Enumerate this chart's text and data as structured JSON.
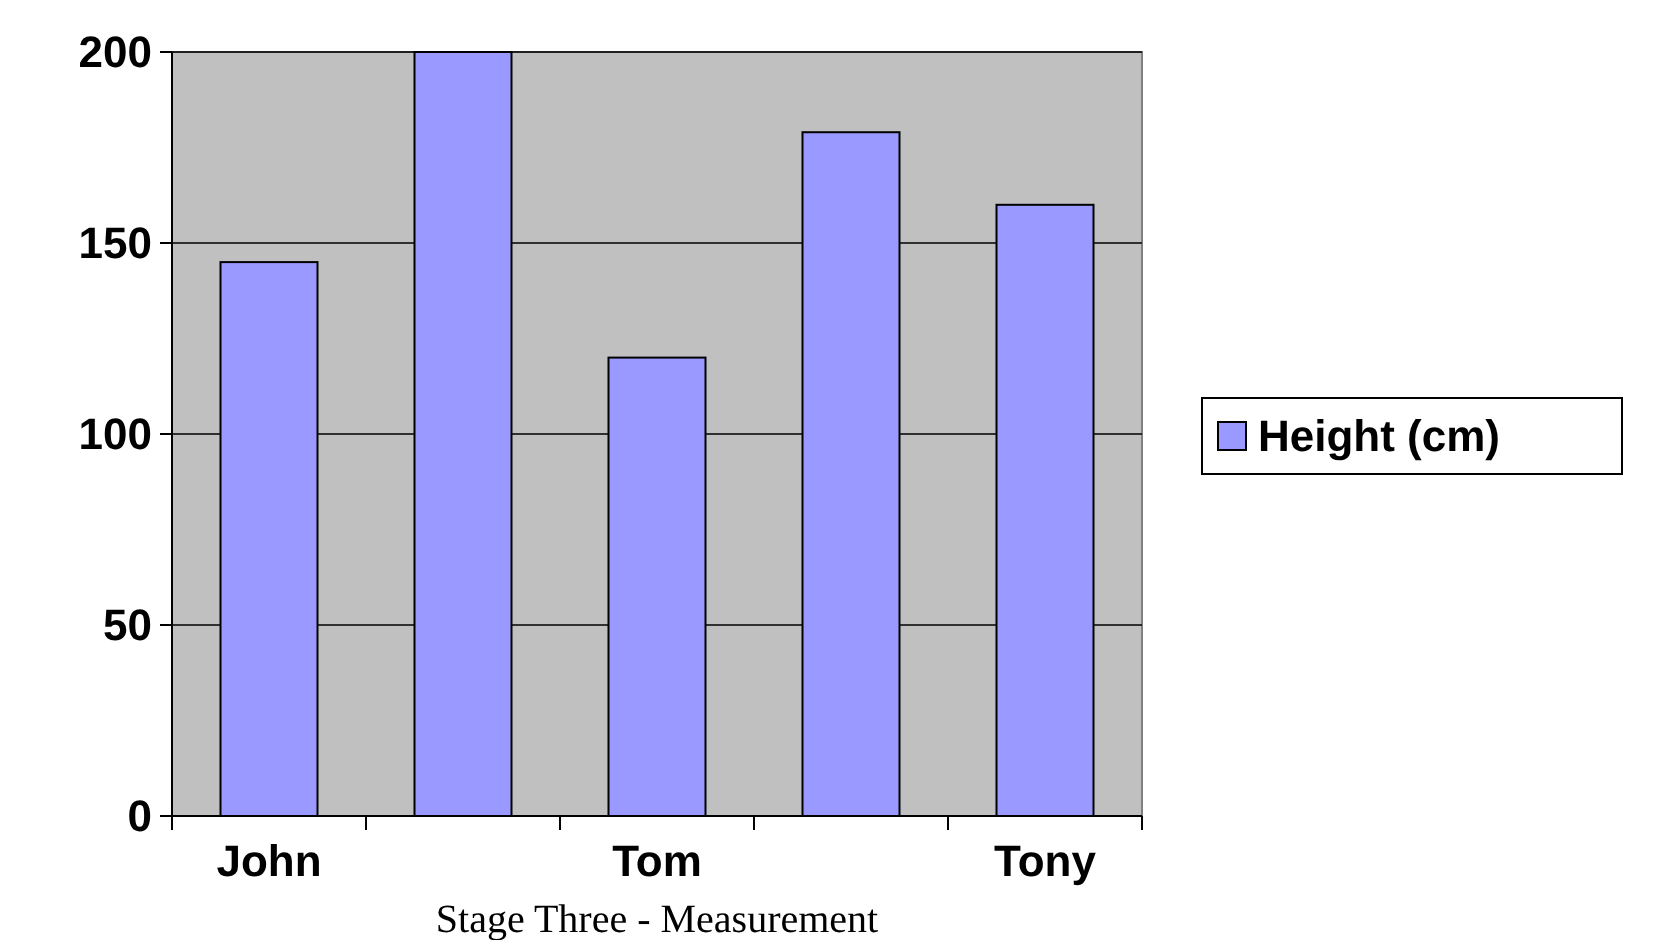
{
  "chart_data": {
    "type": "bar",
    "categories": [
      "John",
      null,
      "Tom",
      null,
      "Tony"
    ],
    "series": [
      {
        "name": "Height (cm)",
        "color": "#9999ff",
        "values": [
          145,
          200,
          120,
          179,
          160
        ]
      }
    ],
    "ylim": [
      0,
      200
    ],
    "yticks": [
      0,
      50,
      100,
      150,
      200
    ],
    "grid": "y",
    "legend": "right",
    "annotations": [
      "Stage Three - Measurement"
    ]
  }
}
